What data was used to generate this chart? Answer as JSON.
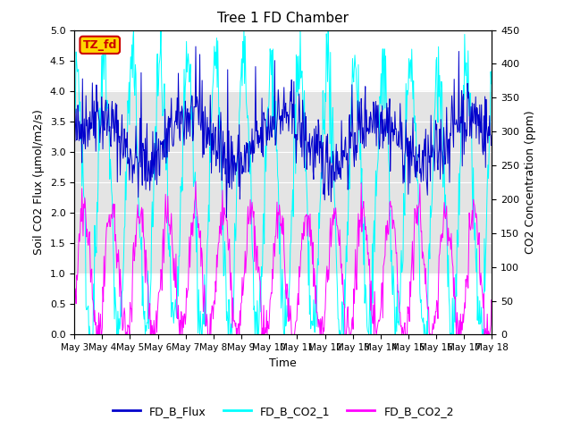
{
  "title": "Tree 1 FD Chamber",
  "ylabel_left": "Soil CO2 Flux (μmol/m2/s)",
  "ylabel_right": "CO2 Concentration (ppm)",
  "xlabel": "Time",
  "ylim_left": [
    0,
    5.0
  ],
  "ylim_right": [
    0,
    450
  ],
  "yticks_left": [
    0.0,
    0.5,
    1.0,
    1.5,
    2.0,
    2.5,
    3.0,
    3.5,
    4.0,
    4.5,
    5.0
  ],
  "yticks_right": [
    0,
    50,
    100,
    150,
    200,
    250,
    300,
    350,
    400,
    450
  ],
  "xtick_labels": [
    "May 3",
    "May 4",
    "May 5",
    "May 6",
    "May 7",
    "May 8",
    "May 9",
    "May 10",
    "May 11",
    "May 12",
    "May 13",
    "May 14",
    "May 15",
    "May 16",
    "May 17",
    "May 18"
  ],
  "shaded_region": [
    1.0,
    4.0
  ],
  "flux_color": "#0000CC",
  "co2_1_color": "#00FFFF",
  "co2_2_color": "#FF00FF",
  "legend_labels": [
    "FD_B_Flux",
    "FD_B_CO2_1",
    "FD_B_CO2_2"
  ],
  "tz_label": "TZ_fd",
  "tz_bg_color": "#FFD700",
  "tz_text_color": "#CC0000",
  "n_days": 15,
  "pts_per_day": 48
}
